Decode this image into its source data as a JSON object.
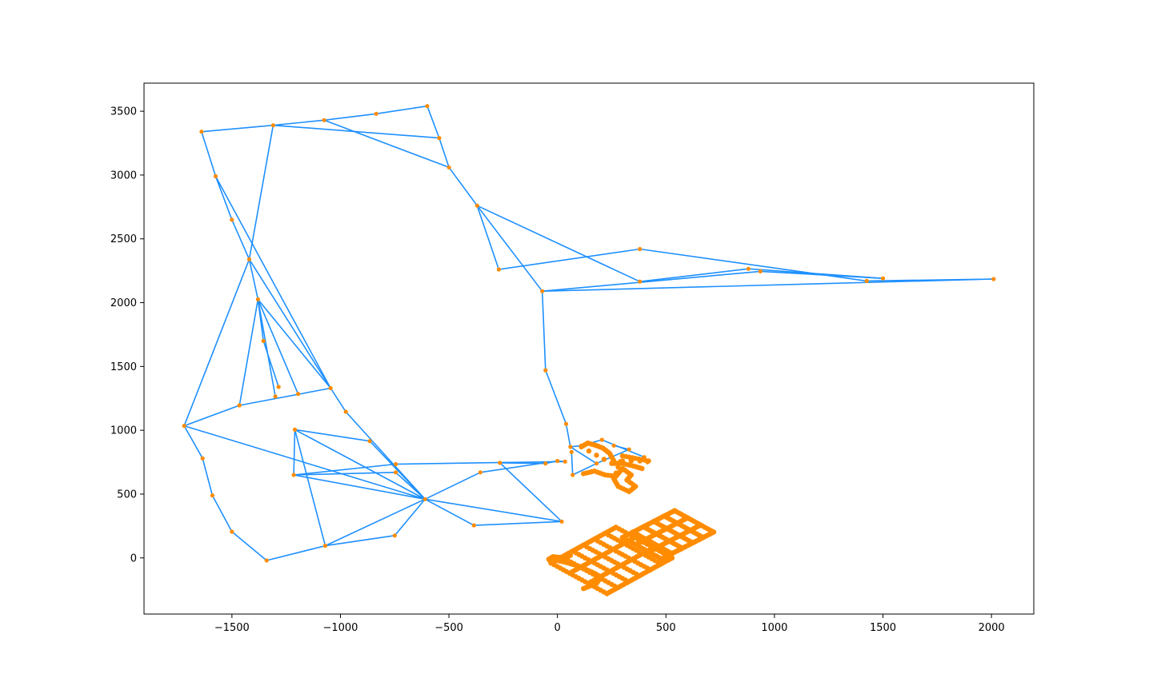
{
  "chart_data": {
    "type": "line",
    "title": "",
    "xlabel": "",
    "ylabel": "",
    "xlim": [
      -1905,
      2195
    ],
    "ylim": [
      -440,
      3720
    ],
    "xticks": [
      -1500,
      -1000,
      -500,
      0,
      500,
      1000,
      1500,
      2000
    ],
    "yticks": [
      0,
      500,
      1000,
      1500,
      2000,
      2500,
      3000,
      3500
    ],
    "xtick_labels": [
      "−1500",
      "−1000",
      "−500",
      "0",
      "500",
      "1000",
      "1500",
      "2000"
    ],
    "ytick_labels": [
      "0",
      "500",
      "1000",
      "1500",
      "2000",
      "2500",
      "3000",
      "3500"
    ],
    "grid": false,
    "line_color": "#1e90ff",
    "marker_color": "#ff8c00",
    "nodes": [
      [
        -1640,
        3340
      ],
      [
        -1310,
        3390
      ],
      [
        -1075,
        3430
      ],
      [
        -835,
        3480
      ],
      [
        -600,
        3540
      ],
      [
        -545,
        3290
      ],
      [
        -500,
        3060
      ],
      [
        -370,
        2760
      ],
      [
        -270,
        2260
      ],
      [
        -70,
        2090
      ],
      [
        380,
        2420
      ],
      [
        380,
        2165
      ],
      [
        880,
        2265
      ],
      [
        935,
        2245
      ],
      [
        1425,
        2170
      ],
      [
        1500,
        2190
      ],
      [
        2010,
        2185
      ],
      [
        -1575,
        2990
      ],
      [
        -1500,
        2650
      ],
      [
        -1420,
        2340
      ],
      [
        -1380,
        2025
      ],
      [
        -1355,
        1700
      ],
      [
        -1300,
        1265
      ],
      [
        -1285,
        1340
      ],
      [
        -1195,
        1285
      ],
      [
        -1045,
        1330
      ],
      [
        -975,
        1145
      ],
      [
        -1465,
        1195
      ],
      [
        -1720,
        1035
      ],
      [
        -1635,
        780
      ],
      [
        -1590,
        490
      ],
      [
        -1500,
        205
      ],
      [
        -1340,
        -20
      ],
      [
        -1070,
        95
      ],
      [
        -1210,
        1005
      ],
      [
        -1215,
        650
      ],
      [
        -865,
        915
      ],
      [
        -745,
        735
      ],
      [
        -745,
        670
      ],
      [
        -750,
        175
      ],
      [
        -610,
        460
      ],
      [
        -355,
        670
      ],
      [
        -385,
        255
      ],
      [
        20,
        285
      ],
      [
        -265,
        745
      ],
      [
        -55,
        1470
      ],
      [
        40,
        1050
      ],
      [
        -55,
        740
      ],
      [
        0,
        760
      ],
      [
        35,
        755
      ],
      [
        60,
        870
      ],
      [
        65,
        830
      ],
      [
        70,
        650
      ],
      [
        110,
        880
      ],
      [
        180,
        740
      ],
      [
        205,
        925
      ],
      [
        260,
        880
      ],
      [
        330,
        850
      ],
      [
        400,
        790
      ],
      [
        415,
        750
      ]
    ],
    "edges": [
      [
        0,
        1
      ],
      [
        1,
        2
      ],
      [
        2,
        3
      ],
      [
        3,
        4
      ],
      [
        4,
        5
      ],
      [
        5,
        6
      ],
      [
        1,
        5
      ],
      [
        2,
        6
      ],
      [
        6,
        7
      ],
      [
        7,
        8
      ],
      [
        8,
        10
      ],
      [
        10,
        14
      ],
      [
        14,
        16
      ],
      [
        16,
        9
      ],
      [
        9,
        7
      ],
      [
        7,
        11
      ],
      [
        11,
        12
      ],
      [
        12,
        15
      ],
      [
        15,
        13
      ],
      [
        13,
        9
      ],
      [
        9,
        45
      ],
      [
        45,
        46
      ],
      [
        46,
        50
      ],
      [
        50,
        53
      ],
      [
        53,
        55
      ],
      [
        55,
        58
      ],
      [
        58,
        59
      ],
      [
        50,
        54
      ],
      [
        54,
        57
      ],
      [
        57,
        56
      ],
      [
        51,
        52
      ],
      [
        52,
        54
      ],
      [
        0,
        17
      ],
      [
        17,
        18
      ],
      [
        18,
        19
      ],
      [
        17,
        25
      ],
      [
        1,
        19
      ],
      [
        19,
        28
      ],
      [
        19,
        25
      ],
      [
        19,
        20
      ],
      [
        20,
        27
      ],
      [
        20,
        21
      ],
      [
        21,
        23
      ],
      [
        20,
        22
      ],
      [
        20,
        24
      ],
      [
        20,
        25
      ],
      [
        27,
        25
      ],
      [
        25,
        26
      ],
      [
        26,
        40
      ],
      [
        28,
        27
      ],
      [
        28,
        29
      ],
      [
        29,
        30
      ],
      [
        30,
        31
      ],
      [
        31,
        32
      ],
      [
        32,
        33
      ],
      [
        28,
        40
      ],
      [
        34,
        36
      ],
      [
        36,
        40
      ],
      [
        34,
        35
      ],
      [
        34,
        40
      ],
      [
        34,
        33
      ],
      [
        35,
        37
      ],
      [
        35,
        38
      ],
      [
        35,
        40
      ],
      [
        37,
        49
      ],
      [
        38,
        40
      ],
      [
        33,
        39
      ],
      [
        33,
        40
      ],
      [
        39,
        40
      ],
      [
        40,
        41
      ],
      [
        41,
        48
      ],
      [
        40,
        43
      ],
      [
        40,
        42
      ],
      [
        42,
        43
      ],
      [
        43,
        44
      ],
      [
        44,
        47
      ],
      [
        47,
        48
      ],
      [
        48,
        49
      ]
    ],
    "clusters": [
      {
        "name": "grid-lower",
        "origin": [
          -30,
          -40
        ],
        "u": [
          300,
          280
        ],
        "v": [
          86,
          -80
        ],
        "nu": 7,
        "nv": 4
      },
      {
        "name": "grid-upper",
        "origin": [
          300,
          160
        ],
        "u": [
          240,
          210
        ],
        "v": [
          60,
          -56
        ],
        "nu": 6,
        "nv": 4
      },
      {
        "name": "path-mid",
        "points": [
          [
            120,
            660
          ],
          [
            170,
            680
          ],
          [
            220,
            650
          ],
          [
            270,
            640
          ],
          [
            300,
            700
          ],
          [
            340,
            650
          ],
          [
            320,
            610
          ],
          [
            360,
            560
          ],
          [
            330,
            520
          ],
          [
            280,
            560
          ],
          [
            260,
            620
          ],
          [
            300,
            800
          ],
          [
            360,
            780
          ],
          [
            420,
            760
          ],
          [
            260,
            760
          ],
          [
            240,
            820
          ],
          [
            210,
            860
          ],
          [
            180,
            880
          ],
          [
            140,
            900
          ],
          [
            110,
            870
          ],
          [
            250,
            740
          ],
          [
            300,
            740
          ],
          [
            350,
            720
          ],
          [
            390,
            700
          ]
        ]
      },
      {
        "name": "path-tail",
        "points": [
          [
            120,
            -240
          ],
          [
            150,
            -220
          ],
          [
            180,
            -200
          ],
          [
            200,
            -150
          ],
          [
            170,
            -120
          ],
          [
            130,
            -90
          ],
          [
            90,
            -60
          ],
          [
            50,
            -40
          ],
          [
            0,
            -20
          ],
          [
            -30,
            -30
          ],
          [
            -40,
            -10
          ],
          [
            -20,
            10
          ],
          [
            30,
            0
          ],
          [
            60,
            20
          ]
        ]
      }
    ]
  }
}
